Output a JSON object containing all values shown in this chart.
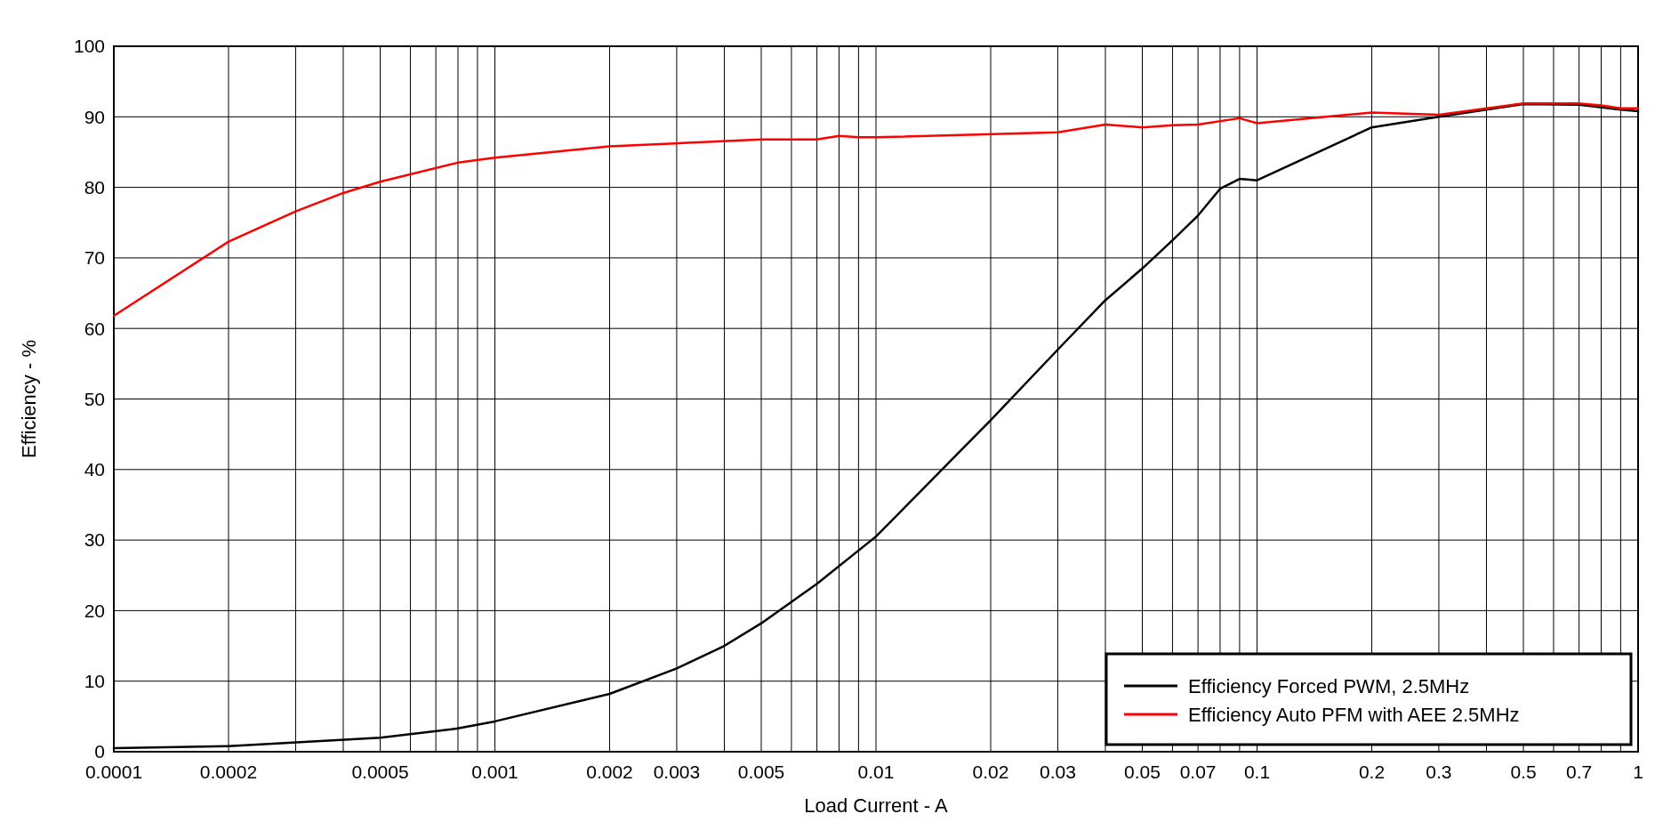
{
  "chart_data": {
    "type": "line",
    "xlabel": "Load Current - A",
    "ylabel": "Efficiency - %",
    "log": "x",
    "grid": true,
    "legend": "bottom right",
    "line_style": "solid",
    "marker": "none",
    "xlim": [
      0.0001,
      1
    ],
    "ylim": [
      0,
      100
    ],
    "xticks": [
      0.0001,
      0.0002,
      {
        "value": 0.0003,
        "label": null
      },
      {
        "value": 0.0004,
        "label": null
      },
      0.0005,
      {
        "value": 0.0006,
        "label": null
      },
      {
        "value": 0.0007,
        "label": null
      },
      {
        "value": 0.0008,
        "label": null
      },
      {
        "value": 0.0009,
        "label": null
      },
      0.001,
      0.002,
      0.003,
      {
        "value": 0.004,
        "label": null
      },
      0.005,
      {
        "value": 0.006,
        "label": null
      },
      {
        "value": 0.007,
        "label": null
      },
      {
        "value": 0.008,
        "label": null
      },
      {
        "value": 0.009,
        "label": null
      },
      0.01,
      0.02,
      0.03,
      {
        "value": 0.04,
        "label": null
      },
      0.05,
      {
        "value": 0.06,
        "label": null
      },
      0.07,
      {
        "value": 0.08,
        "label": null
      },
      {
        "value": 0.09,
        "label": null
      },
      0.1,
      0.2,
      0.3,
      {
        "value": 0.4,
        "label": null
      },
      0.5,
      {
        "value": 0.6,
        "label": null
      },
      0.7,
      {
        "value": 0.8,
        "label": null
      },
      {
        "value": 0.9,
        "label": null
      },
      1
    ],
    "yticks": [
      0,
      10,
      20,
      30,
      40,
      50,
      60,
      70,
      80,
      90,
      100
    ],
    "series": [
      {
        "name": "Efficiency Forced PWM, 2.5MHz",
        "color": "#000000",
        "x": [
          0.0001,
          0.0002,
          0.0005,
          0.0008,
          0.001,
          0.002,
          0.003,
          0.004,
          0.005,
          0.007,
          0.01,
          0.02,
          0.03,
          0.04,
          0.05,
          0.06,
          0.07,
          0.08,
          0.09,
          0.1,
          0.2,
          0.3,
          0.5,
          0.7,
          0.9,
          1
        ],
        "values": [
          0.5,
          0.8,
          2,
          3.3,
          4.3,
          8.2,
          11.8,
          15,
          18.2,
          23.8,
          30.5,
          47,
          57,
          64,
          68.5,
          72.5,
          76,
          79.8,
          81.2,
          81,
          88.5,
          90,
          91.8,
          91.7,
          91,
          90.8
        ]
      },
      {
        "name": "Efficiency Auto PFM with AEE 2.5MHz",
        "color": "#ff0000",
        "x": [
          0.0001,
          0.0002,
          0.0003,
          0.0004,
          0.0005,
          0.0008,
          0.001,
          0.002,
          0.005,
          0.007,
          0.008,
          0.009,
          0.01,
          0.03,
          0.04,
          0.05,
          0.06,
          0.07,
          0.09,
          0.1,
          0.2,
          0.3,
          0.5,
          0.7,
          0.8,
          0.9,
          1
        ],
        "values": [
          61.8,
          72.3,
          76.6,
          79.2,
          80.8,
          83.5,
          84.2,
          85.8,
          86.8,
          86.8,
          87.3,
          87.1,
          87.1,
          87.8,
          88.9,
          88.5,
          88.8,
          88.9,
          89.8,
          89.1,
          90.6,
          90.3,
          91.9,
          91.9,
          91.6,
          91.2,
          91.2
        ]
      }
    ]
  }
}
